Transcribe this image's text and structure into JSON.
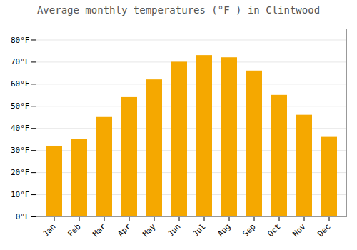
{
  "chart_data": {
    "type": "bar",
    "title": "Average monthly temperatures (°F ) in Clintwood",
    "categories": [
      "Jan",
      "Feb",
      "Mar",
      "Apr",
      "May",
      "Jun",
      "Jul",
      "Aug",
      "Sep",
      "Oct",
      "Nov",
      "Dec"
    ],
    "values": [
      32,
      35,
      45,
      54,
      62,
      70,
      73,
      72,
      66,
      55,
      46,
      36
    ],
    "color": "#F5A800",
    "ylim": [
      0,
      85
    ],
    "yticks": [
      {
        "value": 0,
        "label": "0°F"
      },
      {
        "value": 10,
        "label": "10°F"
      },
      {
        "value": 20,
        "label": "20°F"
      },
      {
        "value": 30,
        "label": "30°F"
      },
      {
        "value": 40,
        "label": "40°F"
      },
      {
        "value": 50,
        "label": "50°F"
      },
      {
        "value": 60,
        "label": "60°F"
      },
      {
        "value": 70,
        "label": "70°F"
      },
      {
        "value": 80,
        "label": "80°F"
      }
    ],
    "grid": true
  }
}
